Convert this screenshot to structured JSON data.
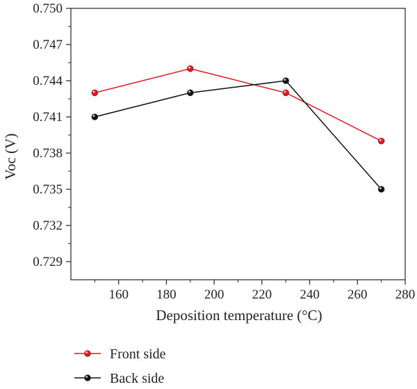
{
  "chart_data": {
    "type": "line",
    "title": "",
    "xlabel": "Deposition temperature (°C)",
    "ylabel": "Voc (V)",
    "xlim": [
      140,
      280
    ],
    "ylim": [
      0.7275,
      0.75
    ],
    "x_ticks": [
      160,
      180,
      200,
      220,
      240,
      260,
      280
    ],
    "x_tick_labels": [
      "160",
      "180",
      "200",
      "220",
      "240",
      "260",
      "280"
    ],
    "y_ticks": [
      0.729,
      0.732,
      0.735,
      0.738,
      0.741,
      0.744,
      0.747,
      0.75
    ],
    "y_tick_labels": [
      "0.729",
      "0.732",
      "0.735",
      "0.738",
      "0.741",
      "0.744",
      "0.747",
      "0.750"
    ],
    "grid": false,
    "legend_position": "bottom-left, below plot",
    "series": [
      {
        "name": "Front side",
        "color": "#e8141e",
        "x": [
          150,
          190,
          230,
          270
        ],
        "y": [
          0.743,
          0.745,
          0.743,
          0.739
        ]
      },
      {
        "name": "Back side",
        "color": "#111111",
        "x": [
          150,
          190,
          230,
          270
        ],
        "y": [
          0.741,
          0.743,
          0.744,
          0.735
        ]
      }
    ]
  }
}
